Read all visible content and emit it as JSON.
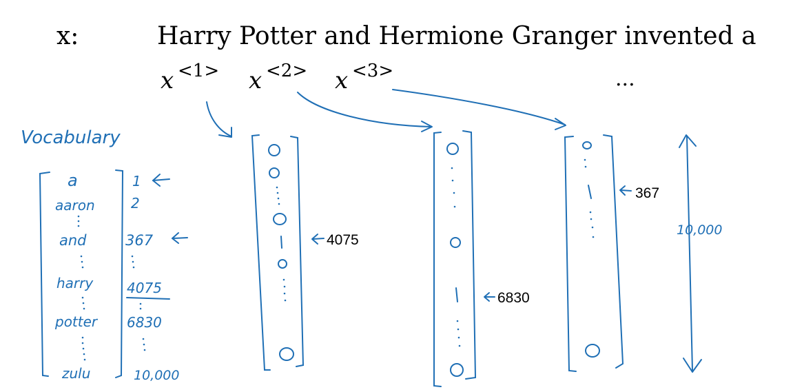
{
  "sentence": {
    "label": "x:",
    "text": "Harry Potter and Hermione Granger invented a",
    "tokens": [
      {
        "base": "x",
        "sup": "<1>"
      },
      {
        "base": "x",
        "sup": "<2>"
      },
      {
        "base": "x",
        "sup": "<3>"
      }
    ],
    "ellipsis": "..."
  },
  "vocabulary": {
    "title": "Vocabulary",
    "words": [
      "a",
      "aaron",
      "and",
      "harry",
      "potter",
      "zulu"
    ],
    "indices": [
      "1",
      "2",
      "367",
      "4075",
      "6830",
      "10,000"
    ]
  },
  "vectors": [
    {
      "label": "4075"
    },
    {
      "label": "6830"
    },
    {
      "label": "367"
    }
  ],
  "dimension_label": "10,000",
  "colors": {
    "ink": "#1f6fb5",
    "text": "#000000",
    "background": "#ffffff"
  }
}
